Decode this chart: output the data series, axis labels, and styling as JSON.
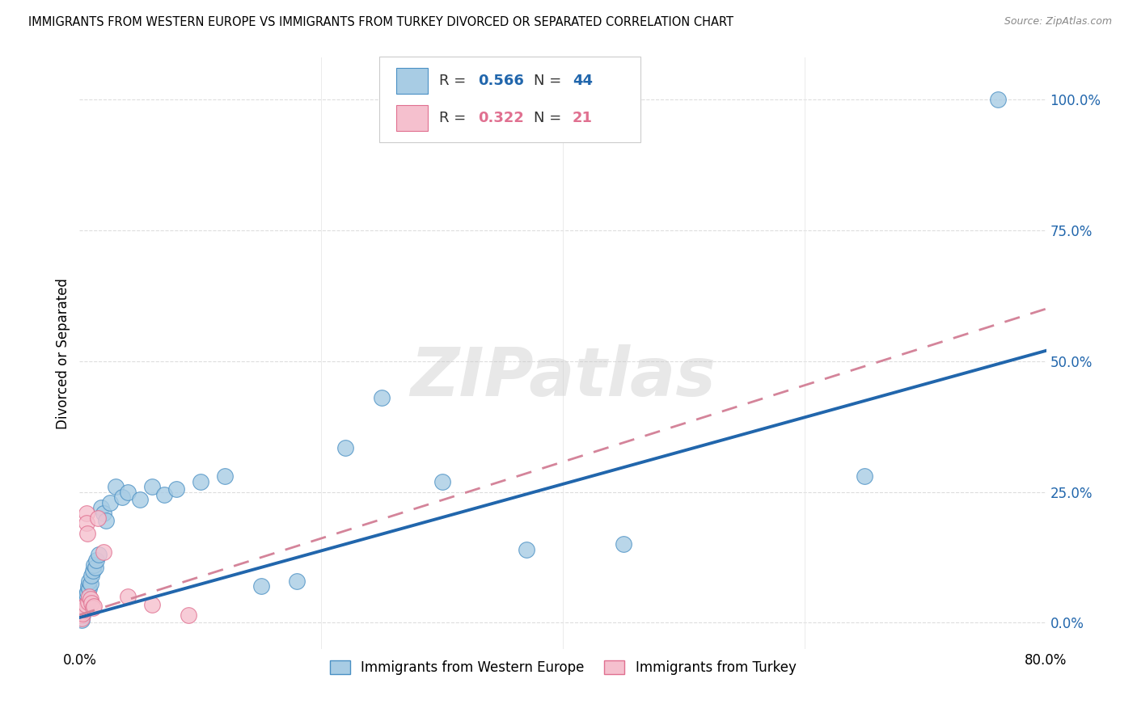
{
  "title": "IMMIGRANTS FROM WESTERN EUROPE VS IMMIGRANTS FROM TURKEY DIVORCED OR SEPARATED CORRELATION CHART",
  "source": "Source: ZipAtlas.com",
  "ylabel": "Divorced or Separated",
  "ytick_values": [
    0.0,
    25.0,
    50.0,
    75.0,
    100.0
  ],
  "xlim": [
    0,
    80
  ],
  "ylim": [
    -5,
    108
  ],
  "watermark": "ZIPatlas",
  "legend_blue_r": "0.566",
  "legend_blue_n": "44",
  "legend_pink_r": "0.322",
  "legend_pink_n": "21",
  "blue_color": "#a8cce4",
  "pink_color": "#f5c0ce",
  "blue_edge_color": "#4a90c4",
  "pink_edge_color": "#e07090",
  "blue_line_color": "#2166ac",
  "pink_line_color": "#d4849a",
  "blue_scatter": [
    [
      0.1,
      1.0
    ],
    [
      0.15,
      0.5
    ],
    [
      0.2,
      2.0
    ],
    [
      0.25,
      1.5
    ],
    [
      0.3,
      3.0
    ],
    [
      0.35,
      2.5
    ],
    [
      0.4,
      4.0
    ],
    [
      0.45,
      3.5
    ],
    [
      0.5,
      5.0
    ],
    [
      0.55,
      4.5
    ],
    [
      0.6,
      5.5
    ],
    [
      0.65,
      6.0
    ],
    [
      0.7,
      7.0
    ],
    [
      0.75,
      6.5
    ],
    [
      0.8,
      8.0
    ],
    [
      0.9,
      7.5
    ],
    [
      1.0,
      9.0
    ],
    [
      1.1,
      10.0
    ],
    [
      1.2,
      11.0
    ],
    [
      1.3,
      10.5
    ],
    [
      1.4,
      12.0
    ],
    [
      1.6,
      13.0
    ],
    [
      1.8,
      22.0
    ],
    [
      2.0,
      21.0
    ],
    [
      2.2,
      19.5
    ],
    [
      2.5,
      23.0
    ],
    [
      3.0,
      26.0
    ],
    [
      3.5,
      24.0
    ],
    [
      4.0,
      25.0
    ],
    [
      5.0,
      23.5
    ],
    [
      6.0,
      26.0
    ],
    [
      7.0,
      24.5
    ],
    [
      8.0,
      25.5
    ],
    [
      10.0,
      27.0
    ],
    [
      12.0,
      28.0
    ],
    [
      15.0,
      7.0
    ],
    [
      18.0,
      8.0
    ],
    [
      22.0,
      33.5
    ],
    [
      25.0,
      43.0
    ],
    [
      30.0,
      27.0
    ],
    [
      37.0,
      14.0
    ],
    [
      45.0,
      15.0
    ],
    [
      65.0,
      28.0
    ],
    [
      76.0,
      100.0
    ]
  ],
  "pink_scatter": [
    [
      0.1,
      1.5
    ],
    [
      0.15,
      0.8
    ],
    [
      0.2,
      2.0
    ],
    [
      0.25,
      1.8
    ],
    [
      0.3,
      3.0
    ],
    [
      0.4,
      2.5
    ],
    [
      0.5,
      3.5
    ],
    [
      0.55,
      21.0
    ],
    [
      0.6,
      19.0
    ],
    [
      0.65,
      17.0
    ],
    [
      0.7,
      4.0
    ],
    [
      0.8,
      5.0
    ],
    [
      0.9,
      4.5
    ],
    [
      1.0,
      3.8
    ],
    [
      1.1,
      2.8
    ],
    [
      1.2,
      3.2
    ],
    [
      1.5,
      20.0
    ],
    [
      2.0,
      13.5
    ],
    [
      4.0,
      5.0
    ],
    [
      6.0,
      3.5
    ],
    [
      9.0,
      1.5
    ]
  ],
  "blue_line_y_start": 1.0,
  "blue_line_y_end": 52.0,
  "pink_line_y_start": 1.5,
  "pink_line_y_end": 60.0,
  "legend_label_blue": "Immigrants from Western Europe",
  "legend_label_pink": "Immigrants from Turkey"
}
